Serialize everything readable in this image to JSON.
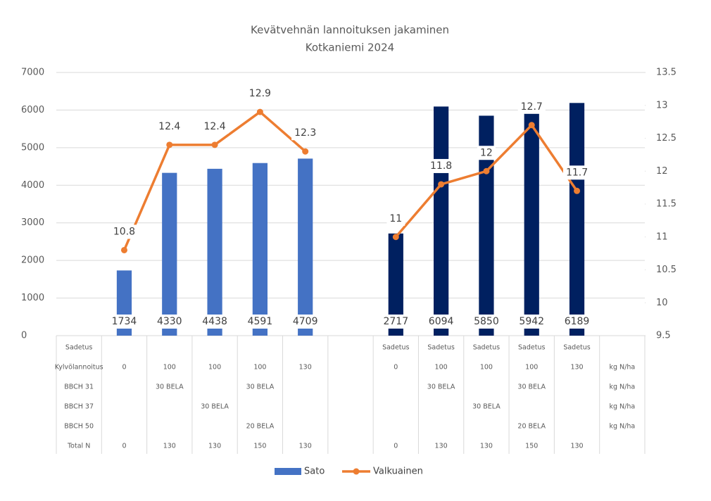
{
  "chart_data": {
    "type": "bar-line",
    "title": "Kevätvehnän lannoituksen jakaminen",
    "subtitle": "Kotkaniemi 2024",
    "series": [
      {
        "name": "Sato",
        "type": "bar",
        "color": "#4472c4",
        "bar_colors": [
          null,
          "#4472c4",
          "#4472c4",
          "#4472c4",
          "#4472c4",
          "#4472c4",
          null,
          "#002060",
          "#002060",
          "#002060",
          "#002060",
          "#002060",
          null
        ],
        "values": [
          null,
          1734,
          4330,
          4438,
          4591,
          4709,
          null,
          2717,
          6094,
          5850,
          5942,
          6189,
          null
        ]
      },
      {
        "name": "Valkuainen",
        "type": "line",
        "color": "#ed7d31",
        "axis": "y2",
        "values": [
          null,
          10.8,
          12.4,
          12.4,
          12.9,
          12.3,
          null,
          11,
          11.8,
          12,
          12.7,
          11.7,
          null
        ]
      }
    ],
    "ylim": [
      0,
      7000
    ],
    "yticks": [
      0,
      1000,
      2000,
      3000,
      4000,
      5000,
      6000,
      7000
    ],
    "y2lim": [
      9.5,
      13.5
    ],
    "y2ticks": [
      9.5,
      10,
      10.5,
      11,
      11.5,
      12,
      12.5,
      13,
      13.5
    ],
    "grid": true,
    "legend": "bottom",
    "table_rows": [
      [
        "Sadetus",
        null,
        null,
        null,
        null,
        null,
        null,
        "Sadetus",
        "Sadetus",
        "Sadetus",
        "Sadetus",
        "Sadetus",
        null
      ],
      [
        "Kylvölannoitus",
        "0",
        "100",
        "100",
        "100",
        "130",
        null,
        "0",
        "100",
        "100",
        "100",
        "130",
        "kg N/ha"
      ],
      [
        "BBCH 31",
        null,
        "30 BELA",
        null,
        "30 BELA",
        null,
        null,
        null,
        "30 BELA",
        null,
        "30 BELA",
        null,
        "kg N/ha"
      ],
      [
        "BBCH 37",
        null,
        null,
        "30 BELA",
        null,
        null,
        null,
        null,
        null,
        "30 BELA",
        null,
        null,
        "kg N/ha"
      ],
      [
        "BBCH 50",
        null,
        null,
        null,
        "20 BELA",
        null,
        null,
        null,
        null,
        null,
        "20 BELA",
        null,
        "kg N/ha"
      ],
      [
        "Total N",
        "0",
        "130",
        "130",
        "150",
        "130",
        null,
        "0",
        "130",
        "130",
        "150",
        "130",
        null
      ]
    ]
  }
}
